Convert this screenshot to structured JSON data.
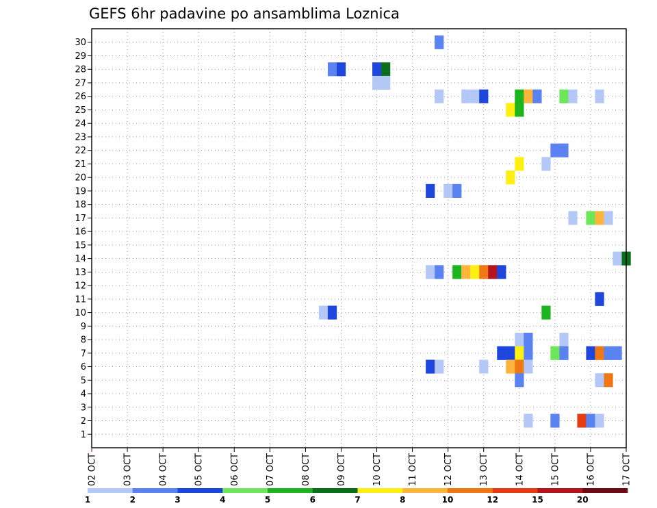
{
  "chart_data": {
    "type": "heatmap",
    "title": "GEFS 6hr padavine po ansamblima Loznica",
    "xlabel": "",
    "ylabel": "",
    "x_tick_labels": [
      "02 OCT",
      "03 OCT",
      "04 OCT",
      "05 OCT",
      "06 OCT",
      "07 OCT",
      "08 OCT",
      "09 OCT",
      "10 OCT",
      "11 OCT",
      "12 OCT",
      "13 OCT",
      "14 OCT",
      "15 OCT",
      "16 OCT",
      "17 OCT"
    ],
    "x_unit": "6-hour step from 02 OCT 00Z",
    "xlim": [
      0,
      60
    ],
    "y_members": [
      1,
      2,
      3,
      4,
      5,
      6,
      7,
      8,
      9,
      10,
      11,
      12,
      13,
      14,
      15,
      16,
      17,
      18,
      19,
      20,
      21,
      22,
      23,
      24,
      25,
      26,
      27,
      28,
      29,
      30
    ],
    "ylim": [
      0,
      31
    ],
    "grid": true,
    "legend": {
      "placement": "bottom",
      "thresholds": [
        "1",
        "2",
        "3",
        "4",
        "5",
        "6",
        "7",
        "8",
        "10",
        "12",
        "15",
        "20"
      ],
      "colors": [
        "#b4c8f8",
        "#5a82f0",
        "#1e46dc",
        "#6ee65a",
        "#1eb41e",
        "#0a6e1a",
        "#fff014",
        "#ffb43c",
        "#f07814",
        "#e63c14",
        "#b4141e",
        "#6e0a14"
      ]
    },
    "cells": [
      {
        "member": 30,
        "step": 39,
        "level": 1
      },
      {
        "member": 28,
        "step": 27,
        "level": 1
      },
      {
        "member": 28,
        "step": 28,
        "level": 2
      },
      {
        "member": 28,
        "step": 32,
        "level": 2
      },
      {
        "member": 28,
        "step": 33,
        "level": 5
      },
      {
        "member": 27,
        "step": 32,
        "level": 0
      },
      {
        "member": 27,
        "step": 33,
        "level": 0
      },
      {
        "member": 26,
        "step": 39,
        "level": 0
      },
      {
        "member": 26,
        "step": 42,
        "level": 0
      },
      {
        "member": 26,
        "step": 43,
        "level": 0
      },
      {
        "member": 26,
        "step": 44,
        "level": 2
      },
      {
        "member": 26,
        "step": 48,
        "level": 4
      },
      {
        "member": 26,
        "step": 49,
        "level": 7
      },
      {
        "member": 26,
        "step": 50,
        "level": 1
      },
      {
        "member": 26,
        "step": 53,
        "level": 3
      },
      {
        "member": 26,
        "step": 54,
        "level": 0
      },
      {
        "member": 26,
        "step": 57,
        "level": 0
      },
      {
        "member": 25,
        "step": 47,
        "level": 6
      },
      {
        "member": 25,
        "step": 48,
        "level": 4
      },
      {
        "member": 22,
        "step": 52,
        "level": 1
      },
      {
        "member": 22,
        "step": 53,
        "level": 1
      },
      {
        "member": 21,
        "step": 48,
        "level": 6
      },
      {
        "member": 21,
        "step": 51,
        "level": 0
      },
      {
        "member": 20,
        "step": 47,
        "level": 6
      },
      {
        "member": 19,
        "step": 38,
        "level": 2
      },
      {
        "member": 19,
        "step": 40,
        "level": 0
      },
      {
        "member": 19,
        "step": 41,
        "level": 1
      },
      {
        "member": 17,
        "step": 54,
        "level": 0
      },
      {
        "member": 17,
        "step": 56,
        "level": 3
      },
      {
        "member": 17,
        "step": 57,
        "level": 7
      },
      {
        "member": 17,
        "step": 58,
        "level": 0
      },
      {
        "member": 14,
        "step": 59,
        "level": 0
      },
      {
        "member": 14,
        "step": 60,
        "level": 5
      },
      {
        "member": 13,
        "step": 38,
        "level": 0
      },
      {
        "member": 13,
        "step": 39,
        "level": 1
      },
      {
        "member": 13,
        "step": 41,
        "level": 4
      },
      {
        "member": 13,
        "step": 42,
        "level": 7
      },
      {
        "member": 13,
        "step": 43,
        "level": 6
      },
      {
        "member": 13,
        "step": 44,
        "level": 8
      },
      {
        "member": 13,
        "step": 45,
        "level": 10
      },
      {
        "member": 13,
        "step": 46,
        "level": 2
      },
      {
        "member": 11,
        "step": 57,
        "level": 2
      },
      {
        "member": 10,
        "step": 26,
        "level": 0
      },
      {
        "member": 10,
        "step": 27,
        "level": 2
      },
      {
        "member": 10,
        "step": 51,
        "level": 4
      },
      {
        "member": 8,
        "step": 48,
        "level": 0
      },
      {
        "member": 8,
        "step": 49,
        "level": 1
      },
      {
        "member": 8,
        "step": 53,
        "level": 0
      },
      {
        "member": 7,
        "step": 46,
        "level": 2
      },
      {
        "member": 7,
        "step": 47,
        "level": 2
      },
      {
        "member": 7,
        "step": 48,
        "level": 6
      },
      {
        "member": 7,
        "step": 49,
        "level": 1
      },
      {
        "member": 7,
        "step": 52,
        "level": 3
      },
      {
        "member": 7,
        "step": 53,
        "level": 1
      },
      {
        "member": 7,
        "step": 56,
        "level": 2
      },
      {
        "member": 7,
        "step": 57,
        "level": 8
      },
      {
        "member": 7,
        "step": 58,
        "level": 1
      },
      {
        "member": 7,
        "step": 59,
        "level": 1
      },
      {
        "member": 6,
        "step": 38,
        "level": 2
      },
      {
        "member": 6,
        "step": 39,
        "level": 0
      },
      {
        "member": 6,
        "step": 44,
        "level": 0
      },
      {
        "member": 6,
        "step": 47,
        "level": 7
      },
      {
        "member": 6,
        "step": 48,
        "level": 8
      },
      {
        "member": 6,
        "step": 49,
        "level": 0
      },
      {
        "member": 5,
        "step": 48,
        "level": 1
      },
      {
        "member": 5,
        "step": 57,
        "level": 0
      },
      {
        "member": 5,
        "step": 58,
        "level": 8
      },
      {
        "member": 2,
        "step": 49,
        "level": 0
      },
      {
        "member": 2,
        "step": 52,
        "level": 1
      },
      {
        "member": 2,
        "step": 55,
        "level": 9
      },
      {
        "member": 2,
        "step": 56,
        "level": 1
      },
      {
        "member": 2,
        "step": 57,
        "level": 0
      }
    ]
  }
}
